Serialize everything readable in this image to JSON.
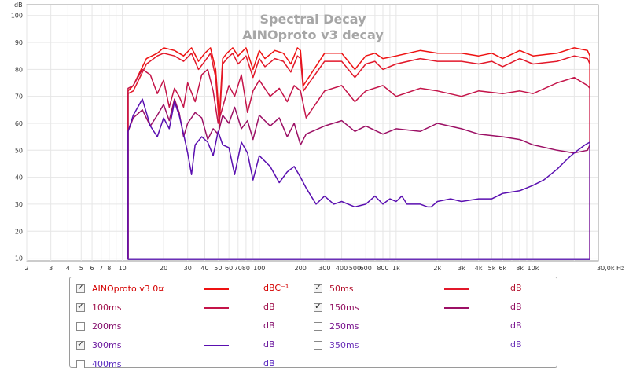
{
  "chart_data": {
    "type": "line",
    "title": "Spectral Decay",
    "subtitle": "AINOproto v3 decay",
    "ylabel": "dB",
    "xlabel": "Hz",
    "x_scale": "log",
    "xlim": [
      2,
      30000
    ],
    "ylim": [
      9,
      104
    ],
    "grid": true,
    "y_ticks": [
      "10",
      "20",
      "30",
      "40",
      "50",
      "60",
      "70",
      "80",
      "90",
      "100"
    ],
    "x_tick_labels": [
      {
        "v": 2,
        "t": "2"
      },
      {
        "v": 3,
        "t": "3"
      },
      {
        "v": 4,
        "t": "4"
      },
      {
        "v": 5,
        "t": "5"
      },
      {
        "v": 6,
        "t": "6"
      },
      {
        "v": 7,
        "t": "7"
      },
      {
        "v": 8,
        "t": "8"
      },
      {
        "v": 10,
        "t": "10"
      },
      {
        "v": 20,
        "t": "20"
      },
      {
        "v": 30,
        "t": "30"
      },
      {
        "v": 40,
        "t": "40"
      },
      {
        "v": 50,
        "t": "50"
      },
      {
        "v": 60,
        "t": "60"
      },
      {
        "v": 70,
        "t": "70"
      },
      {
        "v": 80,
        "t": "80"
      },
      {
        "v": 100,
        "t": "100"
      },
      {
        "v": 200,
        "t": "200"
      },
      {
        "v": 300,
        "t": "300"
      },
      {
        "v": 400,
        "t": "400"
      },
      {
        "v": 500,
        "t": "500"
      },
      {
        "v": 600,
        "t": "600"
      },
      {
        "v": 800,
        "t": "800"
      },
      {
        "v": 1000,
        "t": "1k"
      },
      {
        "v": 2000,
        "t": "2k"
      },
      {
        "v": 3000,
        "t": "3k"
      },
      {
        "v": 4000,
        "t": "4k"
      },
      {
        "v": 5000,
        "t": "5k"
      },
      {
        "v": 6000,
        "t": "6k"
      },
      {
        "v": 8000,
        "t": "8k"
      },
      {
        "v": 10000,
        "t": "10k"
      },
      {
        "v": 30000,
        "t": "30,0k Hz"
      }
    ],
    "series": [
      {
        "name": "AINOproto v3 0¤",
        "color": "#ee1111",
        "x": [
          11,
          12,
          15,
          18,
          20,
          24,
          28,
          32,
          36,
          40,
          44,
          48,
          51,
          54,
          58,
          64,
          70,
          80,
          90,
          100,
          110,
          130,
          150,
          170,
          190,
          200,
          210,
          300,
          400,
          500,
          600,
          700,
          800,
          1000,
          1500,
          2000,
          3000,
          4000,
          5000,
          6000,
          8000,
          10000,
          15000,
          20000,
          25000,
          26000
        ],
        "y": [
          72,
          74,
          84,
          86,
          88,
          87,
          85,
          88,
          83,
          86,
          88,
          80,
          62,
          84,
          86,
          88,
          85,
          88,
          80,
          87,
          84,
          87,
          86,
          82,
          88,
          87,
          74,
          86,
          86,
          80,
          85,
          86,
          84,
          85,
          87,
          86,
          86,
          85,
          86,
          84,
          87,
          85,
          86,
          88,
          87,
          85
        ]
      },
      {
        "name": "50ms",
        "color": "#e2182a",
        "x": [
          11,
          12,
          15,
          18,
          20,
          24,
          28,
          32,
          36,
          40,
          44,
          48,
          51,
          54,
          58,
          64,
          70,
          80,
          90,
          100,
          110,
          130,
          150,
          170,
          190,
          200,
          210,
          300,
          400,
          500,
          600,
          700,
          800,
          1000,
          1500,
          2000,
          3000,
          4000,
          5000,
          6000,
          8000,
          10000,
          15000,
          20000,
          25000,
          26000
        ],
        "y": [
          71,
          72,
          82,
          85,
          86,
          85,
          83,
          86,
          80,
          83,
          86,
          77,
          59,
          82,
          84,
          86,
          82,
          85,
          77,
          84,
          81,
          84,
          83,
          79,
          85,
          84,
          72,
          83,
          83,
          77,
          82,
          83,
          80,
          82,
          84,
          83,
          83,
          82,
          83,
          81,
          84,
          82,
          83,
          85,
          84,
          82
        ]
      },
      {
        "name": "100ms",
        "color": "#c41449",
        "x": [
          11,
          12,
          14,
          16,
          18,
          20,
          22,
          24,
          26,
          28,
          30,
          34,
          38,
          42,
          46,
          50,
          54,
          60,
          66,
          74,
          82,
          90,
          100,
          120,
          140,
          160,
          180,
          200,
          220,
          300,
          400,
          500,
          600,
          800,
          1000,
          1500,
          2000,
          3000,
          4000,
          6000,
          8000,
          10000,
          15000,
          20000,
          25000,
          26000
        ],
        "y": [
          73,
          74,
          80,
          78,
          71,
          76,
          66,
          73,
          70,
          66,
          75,
          68,
          78,
          80,
          72,
          60,
          66,
          74,
          70,
          78,
          64,
          72,
          76,
          70,
          73,
          68,
          74,
          72,
          62,
          72,
          74,
          68,
          72,
          74,
          70,
          73,
          72,
          70,
          72,
          71,
          72,
          71,
          75,
          77,
          74,
          73
        ]
      },
      {
        "name": "150ms",
        "color": "#9c1065",
        "x": [
          11,
          12,
          14,
          16,
          18,
          20,
          22,
          24,
          26,
          28,
          30,
          34,
          38,
          42,
          46,
          50,
          54,
          60,
          66,
          74,
          82,
          90,
          100,
          120,
          140,
          160,
          180,
          200,
          220,
          300,
          400,
          500,
          600,
          800,
          1000,
          1500,
          2000,
          3000,
          4000,
          6000,
          8000,
          10000,
          15000,
          20000,
          25000,
          26000
        ],
        "y": [
          57,
          62,
          65,
          59,
          63,
          67,
          61,
          69,
          64,
          55,
          60,
          64,
          62,
          54,
          58,
          56,
          63,
          60,
          66,
          58,
          61,
          54,
          63,
          59,
          62,
          55,
          60,
          52,
          56,
          59,
          61,
          57,
          59,
          56,
          58,
          57,
          60,
          58,
          56,
          55,
          54,
          52,
          50,
          49,
          50,
          52
        ]
      },
      {
        "name": "300ms",
        "color": "#5a0fb0",
        "x": [
          11,
          12,
          14,
          16,
          18,
          20,
          22,
          24,
          26,
          28,
          30,
          32,
          34,
          38,
          42,
          46,
          50,
          54,
          60,
          66,
          74,
          82,
          90,
          100,
          120,
          140,
          160,
          180,
          200,
          220,
          260,
          300,
          350,
          400,
          500,
          600,
          700,
          800,
          900,
          1000,
          1100,
          1200,
          1500,
          1700,
          1800,
          1900,
          2000,
          2500,
          3000,
          4000,
          5000,
          6000,
          8000,
          10000,
          12000,
          15000,
          18000,
          20000,
          24000,
          26000
        ],
        "y": [
          57,
          63,
          69,
          59,
          55,
          62,
          58,
          68,
          63,
          56,
          49,
          41,
          52,
          55,
          53,
          48,
          57,
          52,
          51,
          41,
          53,
          49,
          39,
          48,
          44,
          38,
          42,
          44,
          40,
          36,
          30,
          33,
          30,
          31,
          29,
          30,
          33,
          30,
          32,
          31,
          33,
          30,
          30,
          29,
          29,
          30,
          31,
          32,
          31,
          32,
          32,
          34,
          35,
          37,
          39,
          43,
          47,
          49,
          52,
          53
        ]
      },
      {
        "name": "350ms",
        "color": "#6a2fb8",
        "x": [
          11,
          12,
          20,
          100,
          1000,
          10000,
          26000
        ],
        "y": [
          9.5,
          9.5,
          9.5,
          9.5,
          9.5,
          9.5,
          9.5
        ]
      }
    ]
  },
  "legend": {
    "items": [
      {
        "label": "AINOproto v3 0¤",
        "checked": true,
        "unit": "dBC⁻¹",
        "color": "#ee1111",
        "line": true,
        "text_color": "#d40000"
      },
      {
        "label": "50ms",
        "checked": true,
        "unit": "dB",
        "color": "#e2182a",
        "line": true,
        "text_color": "#b3102c"
      },
      {
        "label": "100ms",
        "checked": true,
        "unit": "dB",
        "color": "#c41449",
        "line": true,
        "text_color": "#a0104a"
      },
      {
        "label": "150ms",
        "checked": true,
        "unit": "dB",
        "color": "#9c1065",
        "line": true,
        "text_color": "#900f60"
      },
      {
        "label": "200ms",
        "checked": false,
        "unit": "dB",
        "color": "#8a1478",
        "line": false,
        "text_color": "#86126e"
      },
      {
        "label": "250ms",
        "checked": false,
        "unit": "dB",
        "color": "#7b1890",
        "line": false,
        "text_color": "#7b1890"
      },
      {
        "label": "300ms",
        "checked": true,
        "unit": "dB",
        "color": "#5a0fb0",
        "line": true,
        "text_color": "#6c1aa0"
      },
      {
        "label": "350ms",
        "checked": false,
        "unit": "dB",
        "color": "#6a2fb8",
        "line": false,
        "text_color": "#6a2fb8"
      },
      {
        "label": "400ms",
        "checked": false,
        "unit": "dB",
        "color": "#5a2ac0",
        "line": false,
        "text_color": "#5a2ac0"
      }
    ]
  }
}
